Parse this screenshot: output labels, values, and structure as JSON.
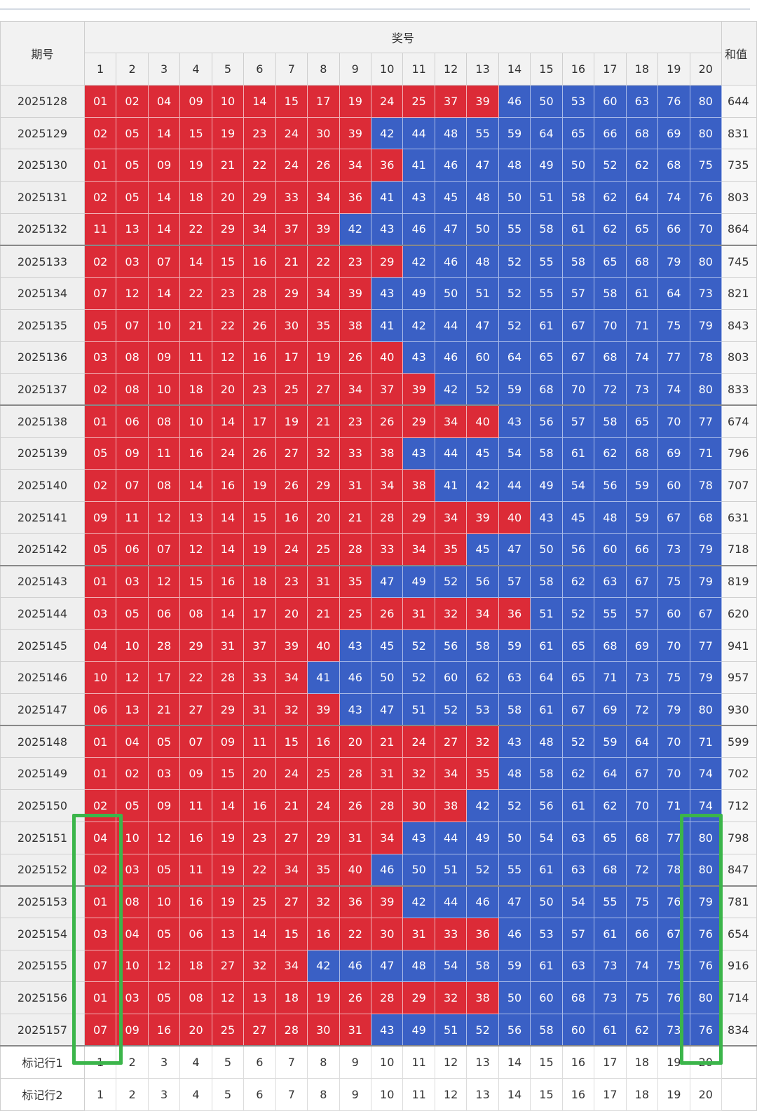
{
  "header": {
    "period_label": "期号",
    "numbers_label": "奖号",
    "sum_label": "和值"
  },
  "columns": [
    "1",
    "2",
    "3",
    "4",
    "5",
    "6",
    "7",
    "8",
    "9",
    "10",
    "11",
    "12",
    "13",
    "14",
    "15",
    "16",
    "17",
    "18",
    "19",
    "20"
  ],
  "colors": {
    "red": "#dc2b37",
    "blue": "#3a60c5",
    "highlight": "#3bb54a"
  },
  "rows": [
    {
      "period": "2025128",
      "red_count": 13,
      "numbers": [
        "01",
        "02",
        "04",
        "09",
        "10",
        "14",
        "15",
        "17",
        "19",
        "24",
        "25",
        "37",
        "39",
        "46",
        "50",
        "53",
        "60",
        "63",
        "76",
        "80"
      ],
      "sum": "644"
    },
    {
      "period": "2025129",
      "red_count": 9,
      "numbers": [
        "02",
        "05",
        "14",
        "15",
        "19",
        "23",
        "24",
        "30",
        "39",
        "42",
        "44",
        "48",
        "55",
        "59",
        "64",
        "65",
        "66",
        "68",
        "69",
        "80"
      ],
      "sum": "831"
    },
    {
      "period": "2025130",
      "red_count": 10,
      "numbers": [
        "01",
        "05",
        "09",
        "19",
        "21",
        "22",
        "24",
        "26",
        "34",
        "36",
        "41",
        "46",
        "47",
        "48",
        "49",
        "50",
        "52",
        "62",
        "68",
        "75"
      ],
      "sum": "735"
    },
    {
      "period": "2025131",
      "red_count": 9,
      "numbers": [
        "02",
        "05",
        "14",
        "18",
        "20",
        "29",
        "33",
        "34",
        "36",
        "41",
        "43",
        "45",
        "48",
        "50",
        "51",
        "58",
        "62",
        "64",
        "74",
        "76"
      ],
      "sum": "803"
    },
    {
      "period": "2025132",
      "red_count": 8,
      "numbers": [
        "11",
        "13",
        "14",
        "22",
        "29",
        "34",
        "37",
        "39",
        "42",
        "43",
        "46",
        "47",
        "50",
        "55",
        "58",
        "61",
        "62",
        "65",
        "66",
        "70"
      ],
      "sum": "864"
    },
    {
      "period": "2025133",
      "red_count": 10,
      "numbers": [
        "02",
        "03",
        "07",
        "14",
        "15",
        "16",
        "21",
        "22",
        "23",
        "29",
        "42",
        "46",
        "48",
        "52",
        "55",
        "58",
        "65",
        "68",
        "79",
        "80"
      ],
      "sum": "745"
    },
    {
      "period": "2025134",
      "red_count": 9,
      "numbers": [
        "07",
        "12",
        "14",
        "22",
        "23",
        "28",
        "29",
        "34",
        "39",
        "43",
        "49",
        "50",
        "51",
        "52",
        "55",
        "57",
        "58",
        "61",
        "64",
        "73"
      ],
      "sum": "821"
    },
    {
      "period": "2025135",
      "red_count": 9,
      "numbers": [
        "05",
        "07",
        "10",
        "21",
        "22",
        "26",
        "30",
        "35",
        "38",
        "41",
        "42",
        "44",
        "47",
        "52",
        "61",
        "67",
        "70",
        "71",
        "75",
        "79"
      ],
      "sum": "843"
    },
    {
      "period": "2025136",
      "red_count": 10,
      "numbers": [
        "03",
        "08",
        "09",
        "11",
        "12",
        "16",
        "17",
        "19",
        "26",
        "40",
        "43",
        "46",
        "60",
        "64",
        "65",
        "67",
        "68",
        "74",
        "77",
        "78"
      ],
      "sum": "803"
    },
    {
      "period": "2025137",
      "red_count": 11,
      "numbers": [
        "02",
        "08",
        "10",
        "18",
        "20",
        "23",
        "25",
        "27",
        "34",
        "37",
        "39",
        "42",
        "52",
        "59",
        "68",
        "70",
        "72",
        "73",
        "74",
        "80"
      ],
      "sum": "833"
    },
    {
      "period": "2025138",
      "red_count": 13,
      "numbers": [
        "01",
        "06",
        "08",
        "10",
        "14",
        "17",
        "19",
        "21",
        "23",
        "26",
        "29",
        "34",
        "40",
        "43",
        "56",
        "57",
        "58",
        "65",
        "70",
        "77"
      ],
      "sum": "674"
    },
    {
      "period": "2025139",
      "red_count": 10,
      "numbers": [
        "05",
        "09",
        "11",
        "16",
        "24",
        "26",
        "27",
        "32",
        "33",
        "38",
        "43",
        "44",
        "45",
        "54",
        "58",
        "61",
        "62",
        "68",
        "69",
        "71"
      ],
      "sum": "796"
    },
    {
      "period": "2025140",
      "red_count": 11,
      "numbers": [
        "02",
        "07",
        "08",
        "14",
        "16",
        "19",
        "26",
        "29",
        "31",
        "34",
        "38",
        "41",
        "42",
        "44",
        "49",
        "54",
        "56",
        "59",
        "60",
        "78"
      ],
      "sum": "707"
    },
    {
      "period": "2025141",
      "red_count": 14,
      "numbers": [
        "09",
        "11",
        "12",
        "13",
        "14",
        "15",
        "16",
        "20",
        "21",
        "28",
        "29",
        "34",
        "39",
        "40",
        "43",
        "45",
        "48",
        "59",
        "67",
        "68"
      ],
      "sum": "631"
    },
    {
      "period": "2025142",
      "red_count": 12,
      "numbers": [
        "05",
        "06",
        "07",
        "12",
        "14",
        "19",
        "24",
        "25",
        "28",
        "33",
        "34",
        "35",
        "45",
        "47",
        "50",
        "56",
        "60",
        "66",
        "73",
        "79"
      ],
      "sum": "718"
    },
    {
      "period": "2025143",
      "red_count": 9,
      "numbers": [
        "01",
        "03",
        "12",
        "15",
        "16",
        "18",
        "23",
        "31",
        "35",
        "47",
        "49",
        "52",
        "56",
        "57",
        "58",
        "62",
        "63",
        "67",
        "75",
        "79"
      ],
      "sum": "819"
    },
    {
      "period": "2025144",
      "red_count": 14,
      "numbers": [
        "03",
        "05",
        "06",
        "08",
        "14",
        "17",
        "20",
        "21",
        "25",
        "26",
        "31",
        "32",
        "34",
        "36",
        "51",
        "52",
        "55",
        "57",
        "60",
        "67"
      ],
      "sum": "620"
    },
    {
      "period": "2025145",
      "red_count": 8,
      "numbers": [
        "04",
        "10",
        "28",
        "29",
        "31",
        "37",
        "39",
        "40",
        "43",
        "45",
        "52",
        "56",
        "58",
        "59",
        "61",
        "65",
        "68",
        "69",
        "70",
        "77"
      ],
      "sum": "941"
    },
    {
      "period": "2025146",
      "red_count": 7,
      "numbers": [
        "10",
        "12",
        "17",
        "22",
        "28",
        "33",
        "34",
        "41",
        "46",
        "50",
        "52",
        "60",
        "62",
        "63",
        "64",
        "65",
        "71",
        "73",
        "75",
        "79"
      ],
      "sum": "957"
    },
    {
      "period": "2025147",
      "red_count": 8,
      "numbers": [
        "06",
        "13",
        "21",
        "27",
        "29",
        "31",
        "32",
        "39",
        "43",
        "47",
        "51",
        "52",
        "53",
        "58",
        "61",
        "67",
        "69",
        "72",
        "79",
        "80"
      ],
      "sum": "930"
    },
    {
      "period": "2025148",
      "red_count": 13,
      "numbers": [
        "01",
        "04",
        "05",
        "07",
        "09",
        "11",
        "15",
        "16",
        "20",
        "21",
        "24",
        "27",
        "32",
        "43",
        "48",
        "52",
        "59",
        "64",
        "70",
        "71"
      ],
      "sum": "599"
    },
    {
      "period": "2025149",
      "red_count": 13,
      "numbers": [
        "01",
        "02",
        "03",
        "09",
        "15",
        "20",
        "24",
        "25",
        "28",
        "31",
        "32",
        "34",
        "35",
        "48",
        "58",
        "62",
        "64",
        "67",
        "70",
        "74"
      ],
      "sum": "702"
    },
    {
      "period": "2025150",
      "red_count": 12,
      "numbers": [
        "02",
        "05",
        "09",
        "11",
        "14",
        "16",
        "21",
        "24",
        "26",
        "28",
        "30",
        "38",
        "42",
        "52",
        "56",
        "61",
        "62",
        "70",
        "71",
        "74"
      ],
      "sum": "712"
    },
    {
      "period": "2025151",
      "red_count": 10,
      "numbers": [
        "04",
        "10",
        "12",
        "16",
        "19",
        "23",
        "27",
        "29",
        "31",
        "34",
        "43",
        "44",
        "49",
        "50",
        "54",
        "63",
        "65",
        "68",
        "77",
        "80"
      ],
      "sum": "798"
    },
    {
      "period": "2025152",
      "red_count": 9,
      "numbers": [
        "02",
        "03",
        "05",
        "11",
        "19",
        "22",
        "34",
        "35",
        "40",
        "46",
        "50",
        "51",
        "52",
        "55",
        "61",
        "63",
        "68",
        "72",
        "78",
        "80"
      ],
      "sum": "847"
    },
    {
      "period": "2025153",
      "red_count": 10,
      "numbers": [
        "01",
        "08",
        "10",
        "16",
        "19",
        "25",
        "27",
        "32",
        "36",
        "39",
        "42",
        "44",
        "46",
        "47",
        "50",
        "54",
        "55",
        "75",
        "76",
        "79"
      ],
      "sum": "781"
    },
    {
      "period": "2025154",
      "red_count": 13,
      "numbers": [
        "03",
        "04",
        "05",
        "06",
        "13",
        "14",
        "15",
        "16",
        "22",
        "30",
        "31",
        "33",
        "36",
        "46",
        "53",
        "57",
        "61",
        "66",
        "67",
        "76"
      ],
      "sum": "654"
    },
    {
      "period": "2025155",
      "red_count": 7,
      "numbers": [
        "07",
        "10",
        "12",
        "18",
        "27",
        "32",
        "34",
        "42",
        "46",
        "47",
        "48",
        "54",
        "58",
        "59",
        "61",
        "63",
        "73",
        "74",
        "75",
        "76"
      ],
      "sum": "916"
    },
    {
      "period": "2025156",
      "red_count": 13,
      "numbers": [
        "01",
        "03",
        "05",
        "08",
        "12",
        "13",
        "18",
        "19",
        "26",
        "28",
        "29",
        "32",
        "38",
        "50",
        "60",
        "68",
        "73",
        "75",
        "76",
        "80"
      ],
      "sum": "714"
    },
    {
      "period": "2025157",
      "red_count": 9,
      "numbers": [
        "07",
        "09",
        "16",
        "20",
        "25",
        "27",
        "28",
        "30",
        "31",
        "43",
        "49",
        "51",
        "52",
        "56",
        "58",
        "60",
        "61",
        "62",
        "73",
        "76"
      ],
      "sum": "834"
    }
  ],
  "mark_rows": [
    {
      "label": "标记行1",
      "values": [
        "1",
        "2",
        "3",
        "4",
        "5",
        "6",
        "7",
        "8",
        "9",
        "10",
        "11",
        "12",
        "13",
        "14",
        "15",
        "16",
        "17",
        "18",
        "19",
        "20"
      ]
    },
    {
      "label": "标记行2",
      "values": [
        "1",
        "2",
        "3",
        "4",
        "5",
        "6",
        "7",
        "8",
        "9",
        "10",
        "11",
        "12",
        "13",
        "14",
        "15",
        "16",
        "17",
        "18",
        "19",
        "20"
      ]
    }
  ]
}
